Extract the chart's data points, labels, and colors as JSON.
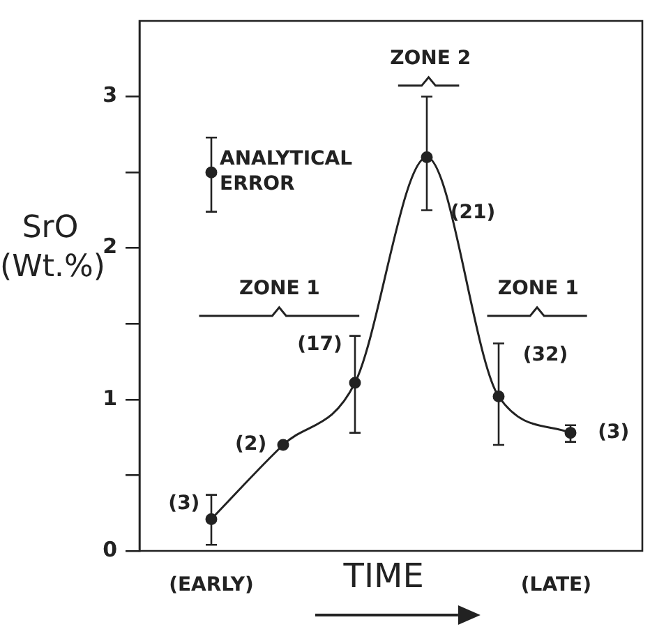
{
  "chart_data": {
    "type": "line",
    "xlabel": "TIME",
    "ylabel": "SrO (Wt.%)",
    "categories": [
      null,
      null,
      null,
      null,
      null,
      null,
      null,
      null
    ],
    "series": [
      {
        "color": "#222222",
        "marker": "circle",
        "line_style": "solid",
        "values": [
          null,
          0.21,
          0.7,
          1.11,
          2.6,
          1.02,
          0.78,
          null
        ],
        "errors": [
          null,
          [
            0.04,
            0.37
          ],
          null,
          [
            0.78,
            1.42
          ],
          [
            2.25,
            3.0
          ],
          [
            0.7,
            1.37
          ],
          [
            0.72,
            0.83
          ],
          null
        ]
      },
      {
        "type": "scatter",
        "name": "ANALYTICAL ERROR",
        "color": "#222222",
        "marker": "circle",
        "values": [
          null,
          2.5,
          null,
          null,
          null,
          null,
          null,
          null
        ],
        "errors": [
          null,
          [
            2.24,
            2.73
          ],
          null,
          null,
          null,
          null,
          null,
          null
        ]
      }
    ],
    "ylim": [
      0,
      3.5
    ],
    "yticks": [
      0,
      {
        "value": 0.5,
        "label": null
      },
      1,
      {
        "value": 1.5,
        "label": null
      },
      2,
      {
        "value": 2.5,
        "label": null
      },
      3
    ],
    "annotations": [
      "ZONE 1",
      "ZONE 2",
      "ZONE 1",
      "(EARLY)",
      "(LATE)",
      "(3)",
      "(2)",
      "(17)",
      "(21)",
      "(32)",
      "(3)"
    ],
    "legend": false
  }
}
